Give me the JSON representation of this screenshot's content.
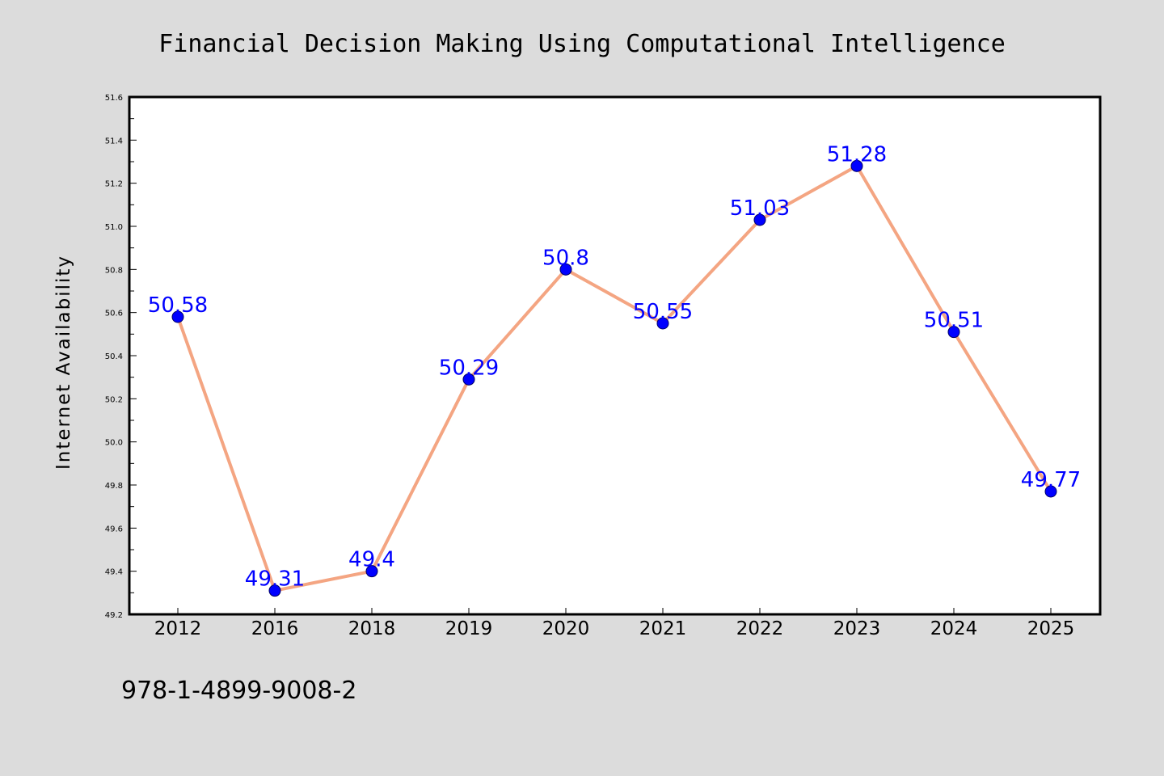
{
  "chart_data": {
    "type": "line",
    "title": "Financial Decision Making Using Computational Intelligence",
    "xlabel": "",
    "ylabel": "Internet Availability",
    "categories": [
      "2012",
      "2016",
      "2018",
      "2019",
      "2020",
      "2021",
      "2022",
      "2023",
      "2024",
      "2025"
    ],
    "series": [
      {
        "values": [
          50.58,
          49.31,
          49.4,
          50.29,
          50.8,
          50.55,
          51.03,
          51.28,
          50.51,
          49.77
        ],
        "data_labels": [
          "50.58",
          "49.31",
          "49.4",
          "50.29",
          "50.8",
          "50.55",
          "51.03",
          "51.28",
          "50.51",
          "49.77"
        ],
        "line_color": "#f4a582",
        "marker_color": "#0000ff",
        "label_color": "#0000ff"
      }
    ],
    "ylim": [
      49.2,
      51.6
    ],
    "yticks": [
      "49.2",
      "49.4",
      "49.6",
      "49.8",
      "50.0",
      "50.2",
      "50.4",
      "50.6",
      "50.8",
      "51.0",
      "51.2",
      "51.4",
      "51.6"
    ],
    "grid": false,
    "legend": "none"
  },
  "footer": {
    "isbn": "978-1-4899-9008-2"
  },
  "colors": {
    "background": "#dcdcdc",
    "plot_background": "#ffffff",
    "axis": "#000000"
  }
}
